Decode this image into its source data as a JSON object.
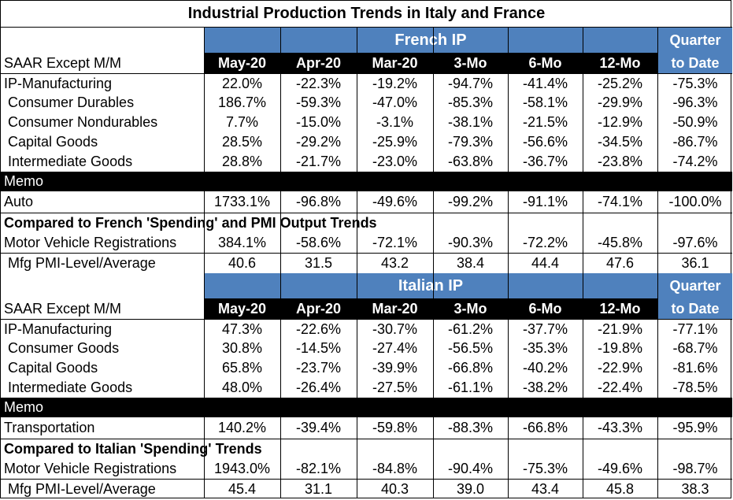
{
  "title": "Industrial Production Trends in Italy and France",
  "quarter_header": [
    "Quarter",
    "to Date"
  ],
  "col_headers": [
    "May-20",
    "Apr-20",
    "Mar-20",
    "3-Mo",
    "6-Mo",
    "12-Mo"
  ],
  "france": {
    "section_title": "French IP",
    "sub_label": "SAAR Except M/M",
    "rows": [
      {
        "label": "IP-Manufacturing",
        "values": [
          "22.0%",
          "-22.3%",
          "-19.2%",
          "-94.7%",
          "-41.4%",
          "-25.2%",
          "-75.3%"
        ]
      },
      {
        "label": "Consumer Durables",
        "values": [
          "186.7%",
          "-59.3%",
          "-47.0%",
          "-85.3%",
          "-58.1%",
          "-29.9%",
          "-96.3%"
        ]
      },
      {
        "label": "Consumer Nondurables",
        "values": [
          "7.7%",
          "-15.0%",
          "-3.1%",
          "-38.1%",
          "-21.5%",
          "-12.9%",
          "-50.9%"
        ]
      },
      {
        "label": "Capital Goods",
        "values": [
          "28.5%",
          "-29.2%",
          "-25.9%",
          "-79.3%",
          "-56.6%",
          "-34.5%",
          "-86.7%"
        ]
      },
      {
        "label": "Intermediate Goods",
        "values": [
          "28.8%",
          "-21.7%",
          "-23.0%",
          "-63.8%",
          "-36.7%",
          "-23.8%",
          "-74.2%"
        ]
      }
    ],
    "memo_label": "Memo",
    "memo_row": {
      "label": "Auto",
      "values": [
        "1733.1%",
        "-96.8%",
        "-49.6%",
        "-99.2%",
        "-91.1%",
        "-74.1%",
        "-100.0%"
      ]
    },
    "compare_title": "Compared to French 'Spending' and PMI Output Trends",
    "compare_rows": [
      {
        "label": "Motor Vehicle Registrations",
        "values": [
          "384.1%",
          "-58.6%",
          "-72.1%",
          "-90.3%",
          "-72.2%",
          "-45.8%",
          "-97.6%"
        ]
      },
      {
        "label": "Mfg PMI-Level/Average",
        "values": [
          "40.6",
          "31.5",
          "43.2",
          "38.4",
          "44.4",
          "47.6",
          "36.1"
        ]
      }
    ]
  },
  "italy": {
    "section_title": "Italian IP",
    "sub_label": "SAAR Except M/M",
    "rows": [
      {
        "label": "IP-Manufacturing",
        "values": [
          "47.3%",
          "-22.6%",
          "-30.7%",
          "-61.2%",
          "-37.7%",
          "-21.9%",
          "-77.1%"
        ]
      },
      {
        "label": "Consumer Goods",
        "values": [
          "30.8%",
          "-14.5%",
          "-27.4%",
          "-56.5%",
          "-35.3%",
          "-19.8%",
          "-68.7%"
        ]
      },
      {
        "label": "Capital Goods",
        "values": [
          "65.8%",
          "-23.7%",
          "-39.9%",
          "-66.8%",
          "-40.2%",
          "-22.9%",
          "-81.6%"
        ]
      },
      {
        "label": "Intermediate Goods",
        "values": [
          "48.0%",
          "-26.4%",
          "-27.5%",
          "-61.1%",
          "-38.2%",
          "-22.4%",
          "-78.5%"
        ]
      }
    ],
    "memo_label": "Memo",
    "memo_row": {
      "label": "Transportation",
      "values": [
        "140.2%",
        "-39.4%",
        "-59.8%",
        "-88.3%",
        "-66.8%",
        "-43.3%",
        "-95.9%"
      ]
    },
    "compare_title": "Compared to Italian 'Spending' Trends",
    "compare_rows": [
      {
        "label": "Motor Vehicle Registrations",
        "values": [
          "1943.0%",
          "-82.1%",
          "-84.8%",
          "-90.4%",
          "-75.3%",
          "-49.6%",
          "-98.7%"
        ]
      },
      {
        "label": "Mfg PMI-Level/Average",
        "values": [
          "45.4",
          "31.1",
          "40.3",
          "39.0",
          "43.4",
          "45.8",
          "38.3"
        ]
      }
    ]
  },
  "colors": {
    "header_blue": "#4f81bd",
    "header_black": "#000000",
    "flag_green": "#1e8c1e"
  }
}
